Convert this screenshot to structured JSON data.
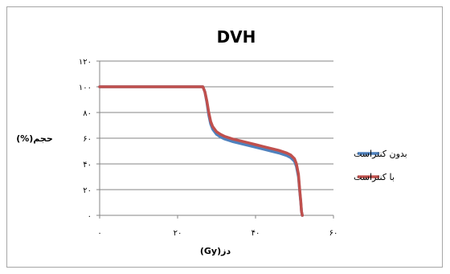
{
  "chart_data": {
    "type": "line",
    "title": "DVH",
    "xlabel": "دز(Gy)",
    "ylabel": "حجم(%)",
    "xlim": [
      0,
      60
    ],
    "ylim": [
      0,
      120
    ],
    "x_ticks": [
      0,
      20,
      40,
      60
    ],
    "y_ticks": [
      0,
      20,
      40,
      60,
      80,
      100,
      120
    ],
    "x_tick_labels": [
      "۰",
      "۲۰",
      "۴۰",
      "۶۰"
    ],
    "y_tick_labels": [
      "۰",
      "۲۰",
      "۴۰",
      "۶۰",
      "۸۰",
      "۱۰۰",
      "۱۲۰"
    ],
    "grid": "horizontal",
    "legend_position": "right",
    "series": [
      {
        "name": "بدون کنتراست",
        "color": "#4f81bd",
        "x": [
          0,
          26.5,
          27,
          27.5,
          28,
          28.5,
          29,
          30,
          31,
          32,
          34,
          36,
          38,
          40,
          42,
          44,
          46,
          47,
          48,
          49,
          50,
          50.5,
          51,
          51.3,
          51.6,
          51.8,
          52
        ],
        "y": [
          100,
          100,
          96,
          88,
          78,
          71,
          67,
          63,
          61,
          59.5,
          57.5,
          56,
          54.5,
          53,
          51.5,
          50,
          48.5,
          47.5,
          46.5,
          45,
          42,
          38,
          30,
          20,
          10,
          3,
          0
        ]
      },
      {
        "name": "با کنتراست",
        "color": "#c0504d",
        "x": [
          0,
          26.5,
          27,
          27.5,
          28,
          28.5,
          29,
          30,
          31,
          32,
          34,
          36,
          38,
          40,
          42,
          44,
          46,
          47,
          48,
          49,
          50,
          50.5,
          51,
          51.3,
          51.6,
          51.8,
          52
        ],
        "y": [
          100,
          100,
          96,
          89,
          80,
          73,
          69,
          65,
          63,
          61.5,
          59.5,
          58,
          56.5,
          55,
          53.5,
          52,
          50.5,
          49.5,
          48.5,
          47,
          44,
          40,
          32,
          21,
          11,
          3,
          0
        ]
      }
    ]
  }
}
